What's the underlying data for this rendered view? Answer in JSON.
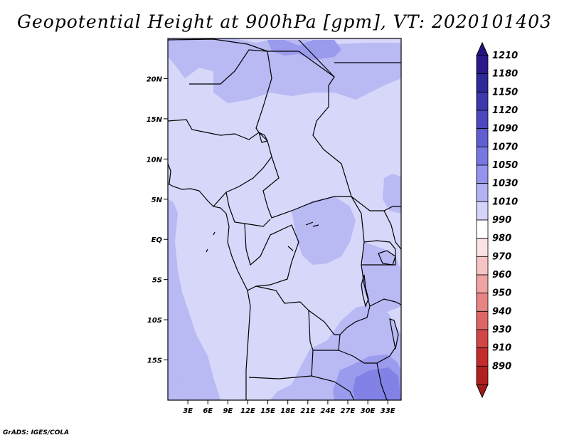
{
  "title": "Geopotential Height at 900hPa [gpm], VT: 2020101403",
  "footer": "GrADS: IGES/COLA",
  "map": {
    "lat_range": [
      -20,
      25
    ],
    "lon_range": [
      0,
      35
    ],
    "lat_ticks": [
      {
        "value": 20,
        "label": "20N"
      },
      {
        "value": 15,
        "label": "15N"
      },
      {
        "value": 10,
        "label": "10N"
      },
      {
        "value": 5,
        "label": "5N"
      },
      {
        "value": 0,
        "label": "EQ"
      },
      {
        "value": -5,
        "label": "5S"
      },
      {
        "value": -10,
        "label": "10S"
      },
      {
        "value": -15,
        "label": "15S"
      }
    ],
    "lon_ticks": [
      {
        "value": 3,
        "label": "3E"
      },
      {
        "value": 6,
        "label": "6E"
      },
      {
        "value": 9,
        "label": "9E"
      },
      {
        "value": 12,
        "label": "12E"
      },
      {
        "value": 15,
        "label": "15E"
      },
      {
        "value": 18,
        "label": "18E"
      },
      {
        "value": 21,
        "label": "21E"
      },
      {
        "value": 24,
        "label": "24E"
      },
      {
        "value": 27,
        "label": "27E"
      },
      {
        "value": 30,
        "label": "30E"
      },
      {
        "value": 33,
        "label": "33E"
      }
    ]
  },
  "colorbar": {
    "levels": [
      {
        "label": "1210",
        "color": "#2a1a8c"
      },
      {
        "label": "1180",
        "color": "#2e2a9a"
      },
      {
        "label": "1150",
        "color": "#3c38ad"
      },
      {
        "label": "1120",
        "color": "#4b48bf"
      },
      {
        "label": "1090",
        "color": "#5f5fd2"
      },
      {
        "label": "1070",
        "color": "#7777e2"
      },
      {
        "label": "1050",
        "color": "#9494ee"
      },
      {
        "label": "1030",
        "color": "#b3b3f4"
      },
      {
        "label": "1010",
        "color": "#d4d4fa"
      },
      {
        "label": "990",
        "color": "#ffffff"
      },
      {
        "label": "980",
        "color": "#fbe3e3"
      },
      {
        "label": "970",
        "color": "#f7c4c4"
      },
      {
        "label": "960",
        "color": "#f0a3a3"
      },
      {
        "label": "950",
        "color": "#e78585"
      },
      {
        "label": "940",
        "color": "#dd6565"
      },
      {
        "label": "930",
        "color": "#d24646"
      },
      {
        "label": "910",
        "color": "#c42c2c"
      },
      {
        "label": "890",
        "color": "#b21f1f"
      }
    ],
    "top_color": "#251580",
    "bottom_color": "#a51a1a"
  },
  "field_colors": {
    "c1010": "#d7d7fa",
    "c1030": "#b9b9f4",
    "c1050": "#9b9bee",
    "c1070": "#8282e6"
  }
}
